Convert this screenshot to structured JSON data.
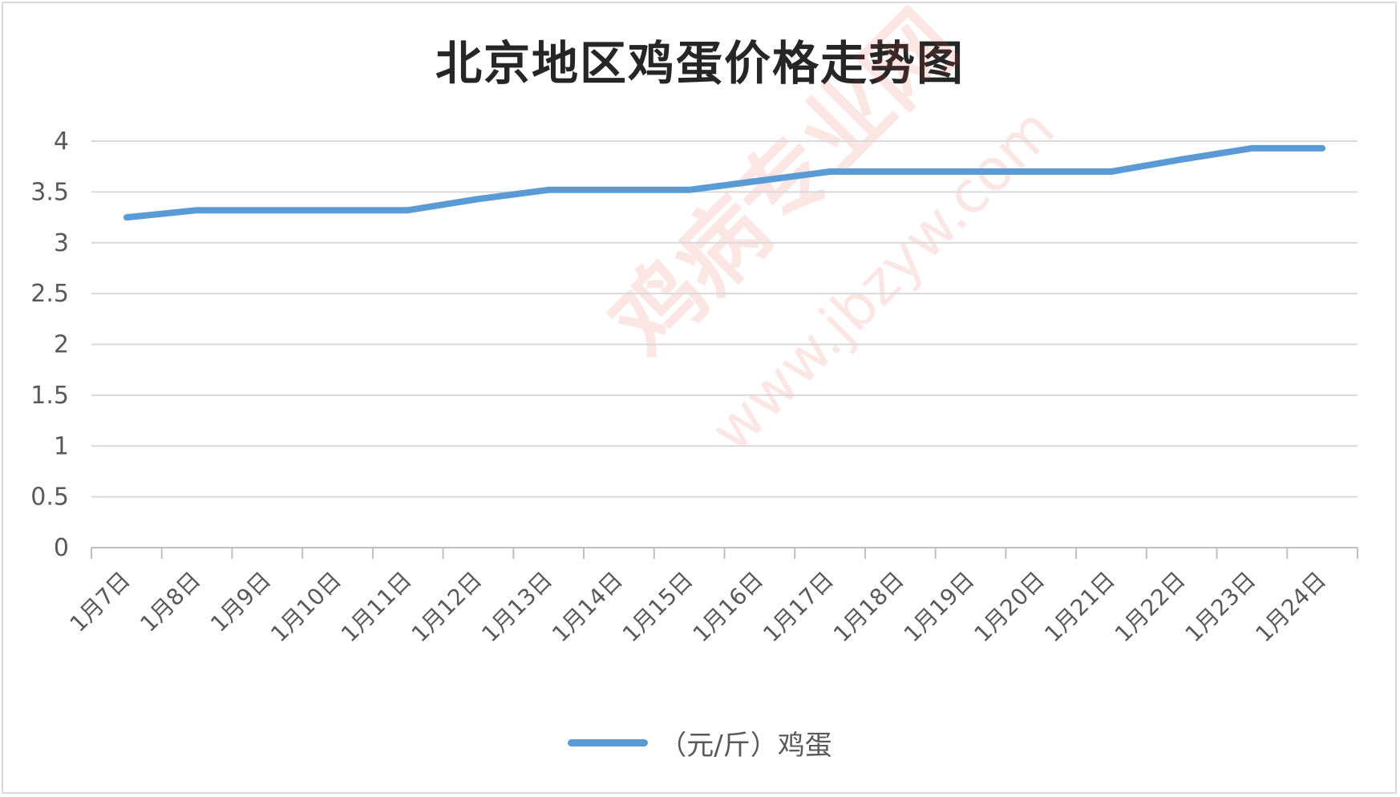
{
  "chart_data": {
    "type": "line",
    "title": "北京地区鸡蛋价格走势图",
    "categories": [
      "1月7日",
      "1月8日",
      "1月9日",
      "1月10日",
      "1月11日",
      "1月12日",
      "1月13日",
      "1月14日",
      "1月15日",
      "1月16日",
      "1月17日",
      "1月18日",
      "1月19日",
      "1月20日",
      "1月21日",
      "1月22日",
      "1月23日",
      "1月24日"
    ],
    "series": [
      {
        "name": "（元/斤）鸡蛋",
        "values": [
          3.25,
          3.32,
          3.32,
          3.32,
          3.32,
          3.43,
          3.52,
          3.52,
          3.52,
          3.61,
          3.7,
          3.7,
          3.7,
          3.7,
          3.7,
          3.82,
          3.93,
          3.93
        ],
        "color": "#5b9bd5"
      }
    ],
    "ylim": [
      0,
      4
    ],
    "yticks": [
      "0",
      "0.5",
      "1",
      "1.5",
      "2",
      "2.5",
      "3",
      "3.5",
      "4"
    ],
    "grid": true,
    "legend": "bottom",
    "xlabel": "",
    "ylabel": ""
  },
  "watermark": {
    "text_main": "鸡病专业网",
    "text_url": "www.jbzyw.com"
  }
}
